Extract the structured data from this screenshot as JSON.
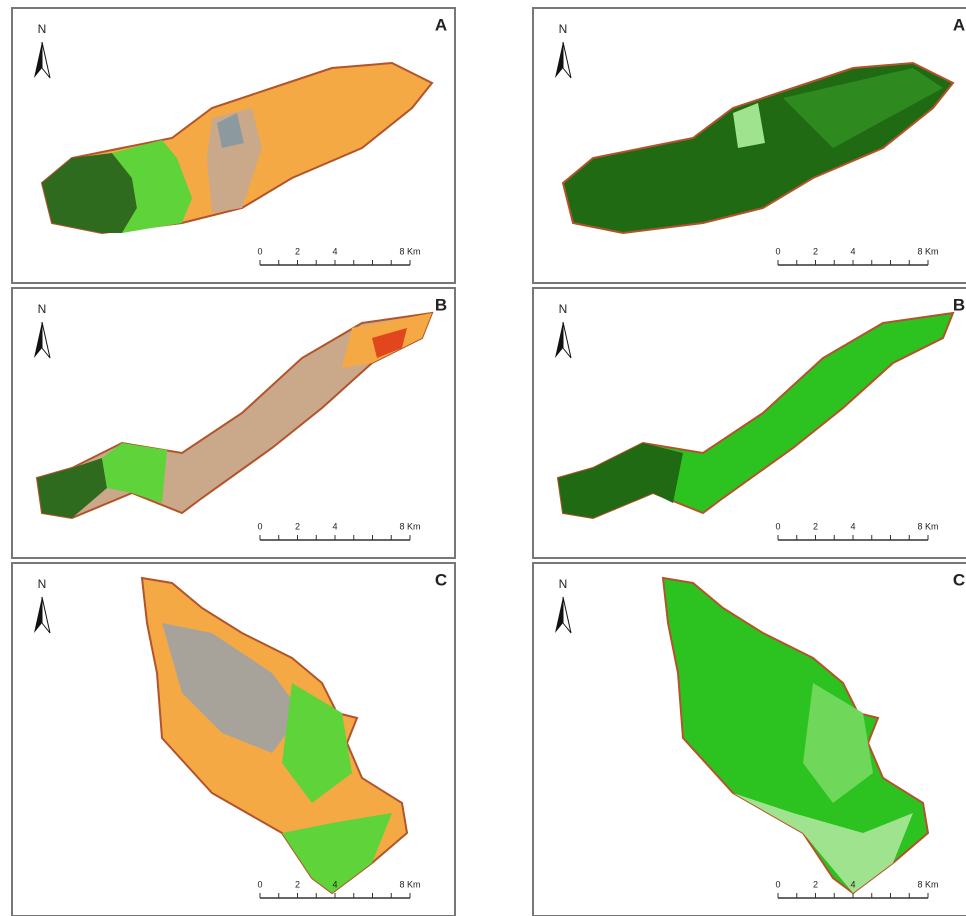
{
  "panels": [
    {
      "label": "A",
      "north": "N",
      "scale": [
        "0",
        "2",
        "4",
        "8 Km"
      ]
    },
    {
      "label": "B",
      "north": "N",
      "scale": [
        "0",
        "2",
        "4",
        "8 Km"
      ]
    },
    {
      "label": "C",
      "north": "N",
      "scale": [
        "0",
        "2",
        "4",
        "8 Km"
      ]
    },
    {
      "label": "A",
      "north": "N",
      "scale": [
        "0",
        "2",
        "4",
        "8 Km"
      ]
    },
    {
      "label": "B",
      "north": "N",
      "scale": [
        "0",
        "2",
        "4",
        "8 Km"
      ]
    },
    {
      "label": "C",
      "north": "N",
      "scale": [
        "0",
        "2",
        "4",
        "8 Km"
      ]
    }
  ]
}
